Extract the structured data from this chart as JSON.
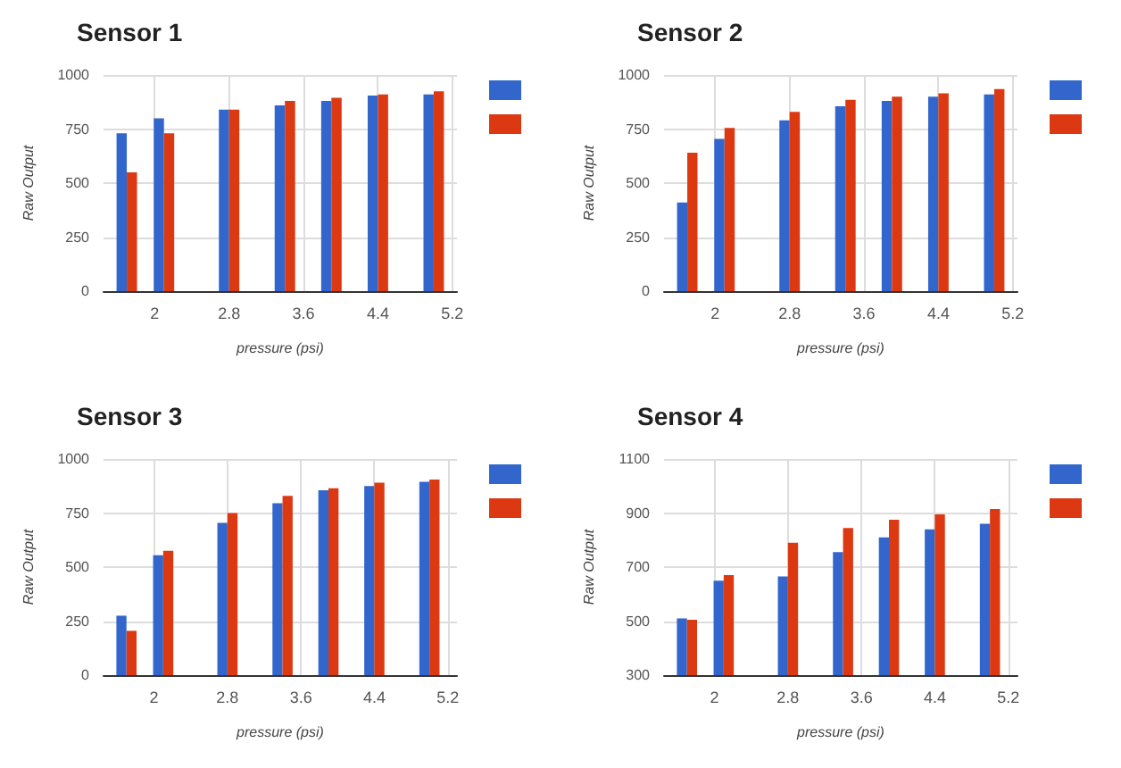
{
  "chart_data": [
    {
      "type": "bar",
      "title": "Sensor 1",
      "xlabel": "pressure (psi)",
      "ylabel": "Raw Output",
      "x": [
        1.7,
        2.1,
        2.8,
        3.4,
        3.9,
        4.4,
        5.0
      ],
      "xlim": [
        1.45,
        5.25
      ],
      "xticks": [
        2,
        2.8,
        3.6,
        4.4,
        5.2
      ],
      "ylim": [
        0,
        1000
      ],
      "yticks": [
        0,
        250,
        500,
        750,
        1000
      ],
      "grid": true,
      "series": [
        {
          "color": "#3366cc",
          "values": [
            730,
            800,
            840,
            860,
            880,
            905,
            910
          ]
        },
        {
          "color": "#dc3912",
          "values": [
            550,
            730,
            840,
            880,
            895,
            910,
            925
          ]
        }
      ]
    },
    {
      "type": "bar",
      "title": "Sensor 2",
      "xlabel": "pressure (psi)",
      "ylabel": "Raw Output",
      "x": [
        1.7,
        2.1,
        2.8,
        3.4,
        3.9,
        4.4,
        5.0
      ],
      "xlim": [
        1.45,
        5.25
      ],
      "xticks": [
        2,
        2.8,
        3.6,
        4.4,
        5.2
      ],
      "ylim": [
        0,
        1000
      ],
      "yticks": [
        0,
        250,
        500,
        750,
        1000
      ],
      "grid": true,
      "series": [
        {
          "color": "#3366cc",
          "values": [
            410,
            705,
            790,
            855,
            880,
            900,
            910
          ]
        },
        {
          "color": "#dc3912",
          "values": [
            640,
            755,
            830,
            885,
            900,
            915,
            935
          ]
        }
      ]
    },
    {
      "type": "bar",
      "title": "Sensor 3",
      "xlabel": "pressure (psi)",
      "ylabel": "Raw Output",
      "x": [
        1.7,
        2.1,
        2.8,
        3.4,
        3.9,
        4.4,
        5.0
      ],
      "xlim": [
        1.45,
        5.3
      ],
      "xticks": [
        2,
        2.8,
        3.6,
        4.4,
        5.2
      ],
      "ylim": [
        0,
        1000
      ],
      "yticks": [
        0,
        250,
        500,
        750,
        1000
      ],
      "grid": true,
      "series": [
        {
          "color": "#3366cc",
          "values": [
            275,
            555,
            705,
            795,
            855,
            875,
            895
          ]
        },
        {
          "color": "#dc3912",
          "values": [
            205,
            575,
            750,
            830,
            865,
            890,
            905
          ]
        }
      ]
    },
    {
      "type": "bar",
      "title": "Sensor 4",
      "xlabel": "pressure (psi)",
      "ylabel": "Raw Output",
      "x": [
        1.7,
        2.1,
        2.8,
        3.4,
        3.9,
        4.4,
        5.0
      ],
      "xlim": [
        1.45,
        5.3
      ],
      "xticks": [
        2,
        2.8,
        3.6,
        4.4,
        5.2
      ],
      "ylim": [
        300,
        1100
      ],
      "yticks": [
        300,
        500,
        700,
        900,
        1100
      ],
      "grid": true,
      "series": [
        {
          "color": "#3366cc",
          "values": [
            510,
            650,
            665,
            755,
            810,
            840,
            860
          ]
        },
        {
          "color": "#dc3912",
          "values": [
            505,
            670,
            790,
            845,
            875,
            895,
            915
          ]
        }
      ]
    }
  ]
}
